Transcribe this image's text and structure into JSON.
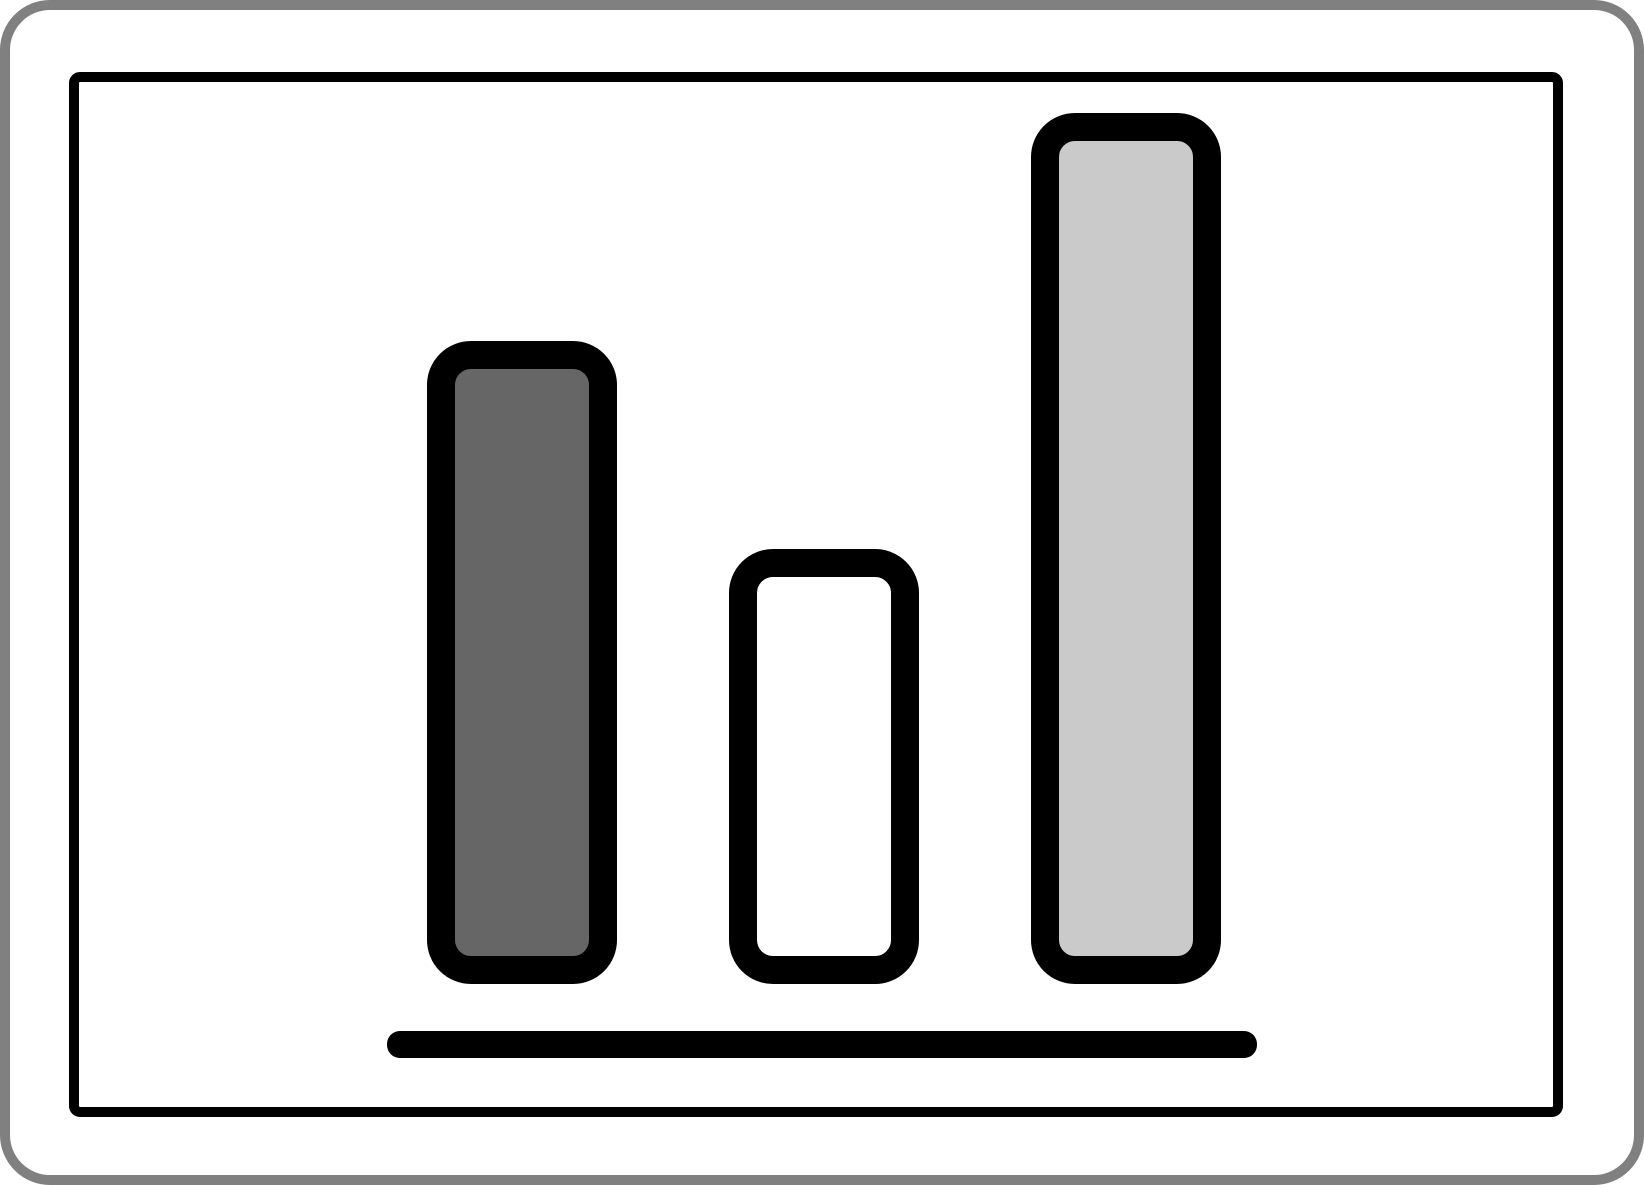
{
  "icon": {
    "name": "bar-chart-icon",
    "depicts": "bar-chart-icon"
  },
  "colors": {
    "card_border": "#808080",
    "card_fill": "#ffffff",
    "outline": "#000000",
    "bar_1_fill": "#666666",
    "bar_2_fill": "#ffffff",
    "bar_3_fill": "#cacaca"
  },
  "bars": [
    {
      "level": 0.62,
      "fill_key": "bar_1_fill"
    },
    {
      "level": 0.41,
      "fill_key": "bar_2_fill"
    },
    {
      "level": 0.85,
      "fill_key": "bar_3_fill"
    }
  ]
}
